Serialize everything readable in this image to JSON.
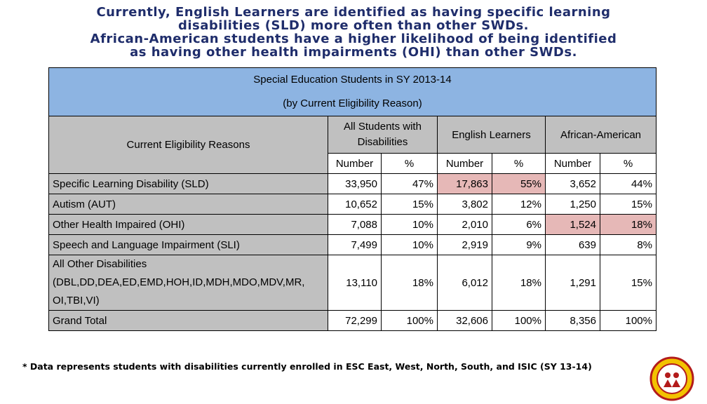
{
  "headline": {
    "line1": "Currently, English Learners are identified as having specific learning",
    "line2": "disabilities (SLD) more often than other SWDs.",
    "line3": "African-American students have a higher likelihood of being identified",
    "line4": "as having other health impairments (OHI) than other SWDs."
  },
  "table": {
    "title_line1": "Special Education Students in SY 2013-14",
    "title_line2": "(by Current Eligibility Reason)",
    "col_reasons": "Current Eligibility Reasons",
    "groups": [
      "All Students with Disabilities",
      "English Learners",
      "African-American"
    ],
    "sub_number": "Number",
    "sub_percent": "%",
    "rows": [
      {
        "label": "Specific Learning Disability (SLD)",
        "values": [
          "33,950",
          "47%",
          "17,863",
          "55%",
          "3,652",
          "44%"
        ]
      },
      {
        "label": "Autism (AUT)",
        "values": [
          "10,652",
          "15%",
          "3,802",
          "12%",
          "1,250",
          "15%"
        ]
      },
      {
        "label": "Other Health Impaired (OHI)",
        "values": [
          "7,088",
          "10%",
          "2,010",
          "6%",
          "1,524",
          "18%"
        ]
      },
      {
        "label": "Speech and Language Impairment (SLI)",
        "values": [
          "7,499",
          "10%",
          "2,919",
          "9%",
          "639",
          "8%"
        ]
      },
      {
        "label": "All Other Disabilities",
        "sublabel": "(DBL,DD,DEA,ED,EMD,HOH,ID,MDH,MDO,MDV,MR,",
        "sublabel2": "OI,TBI,VI)",
        "values": [
          "13,110",
          "18%",
          "6,012",
          "18%",
          "1,291",
          "15%"
        ]
      },
      {
        "label": "Grand Total",
        "values": [
          "72,299",
          "100%",
          "32,606",
          "100%",
          "8,356",
          "100%"
        ]
      }
    ],
    "highlight_color": "#e6b8b7"
  },
  "footnote": "* Data represents students with disabilities currently enrolled in ESC East, West, North, South, and ISIC (SY 13-14)"
}
